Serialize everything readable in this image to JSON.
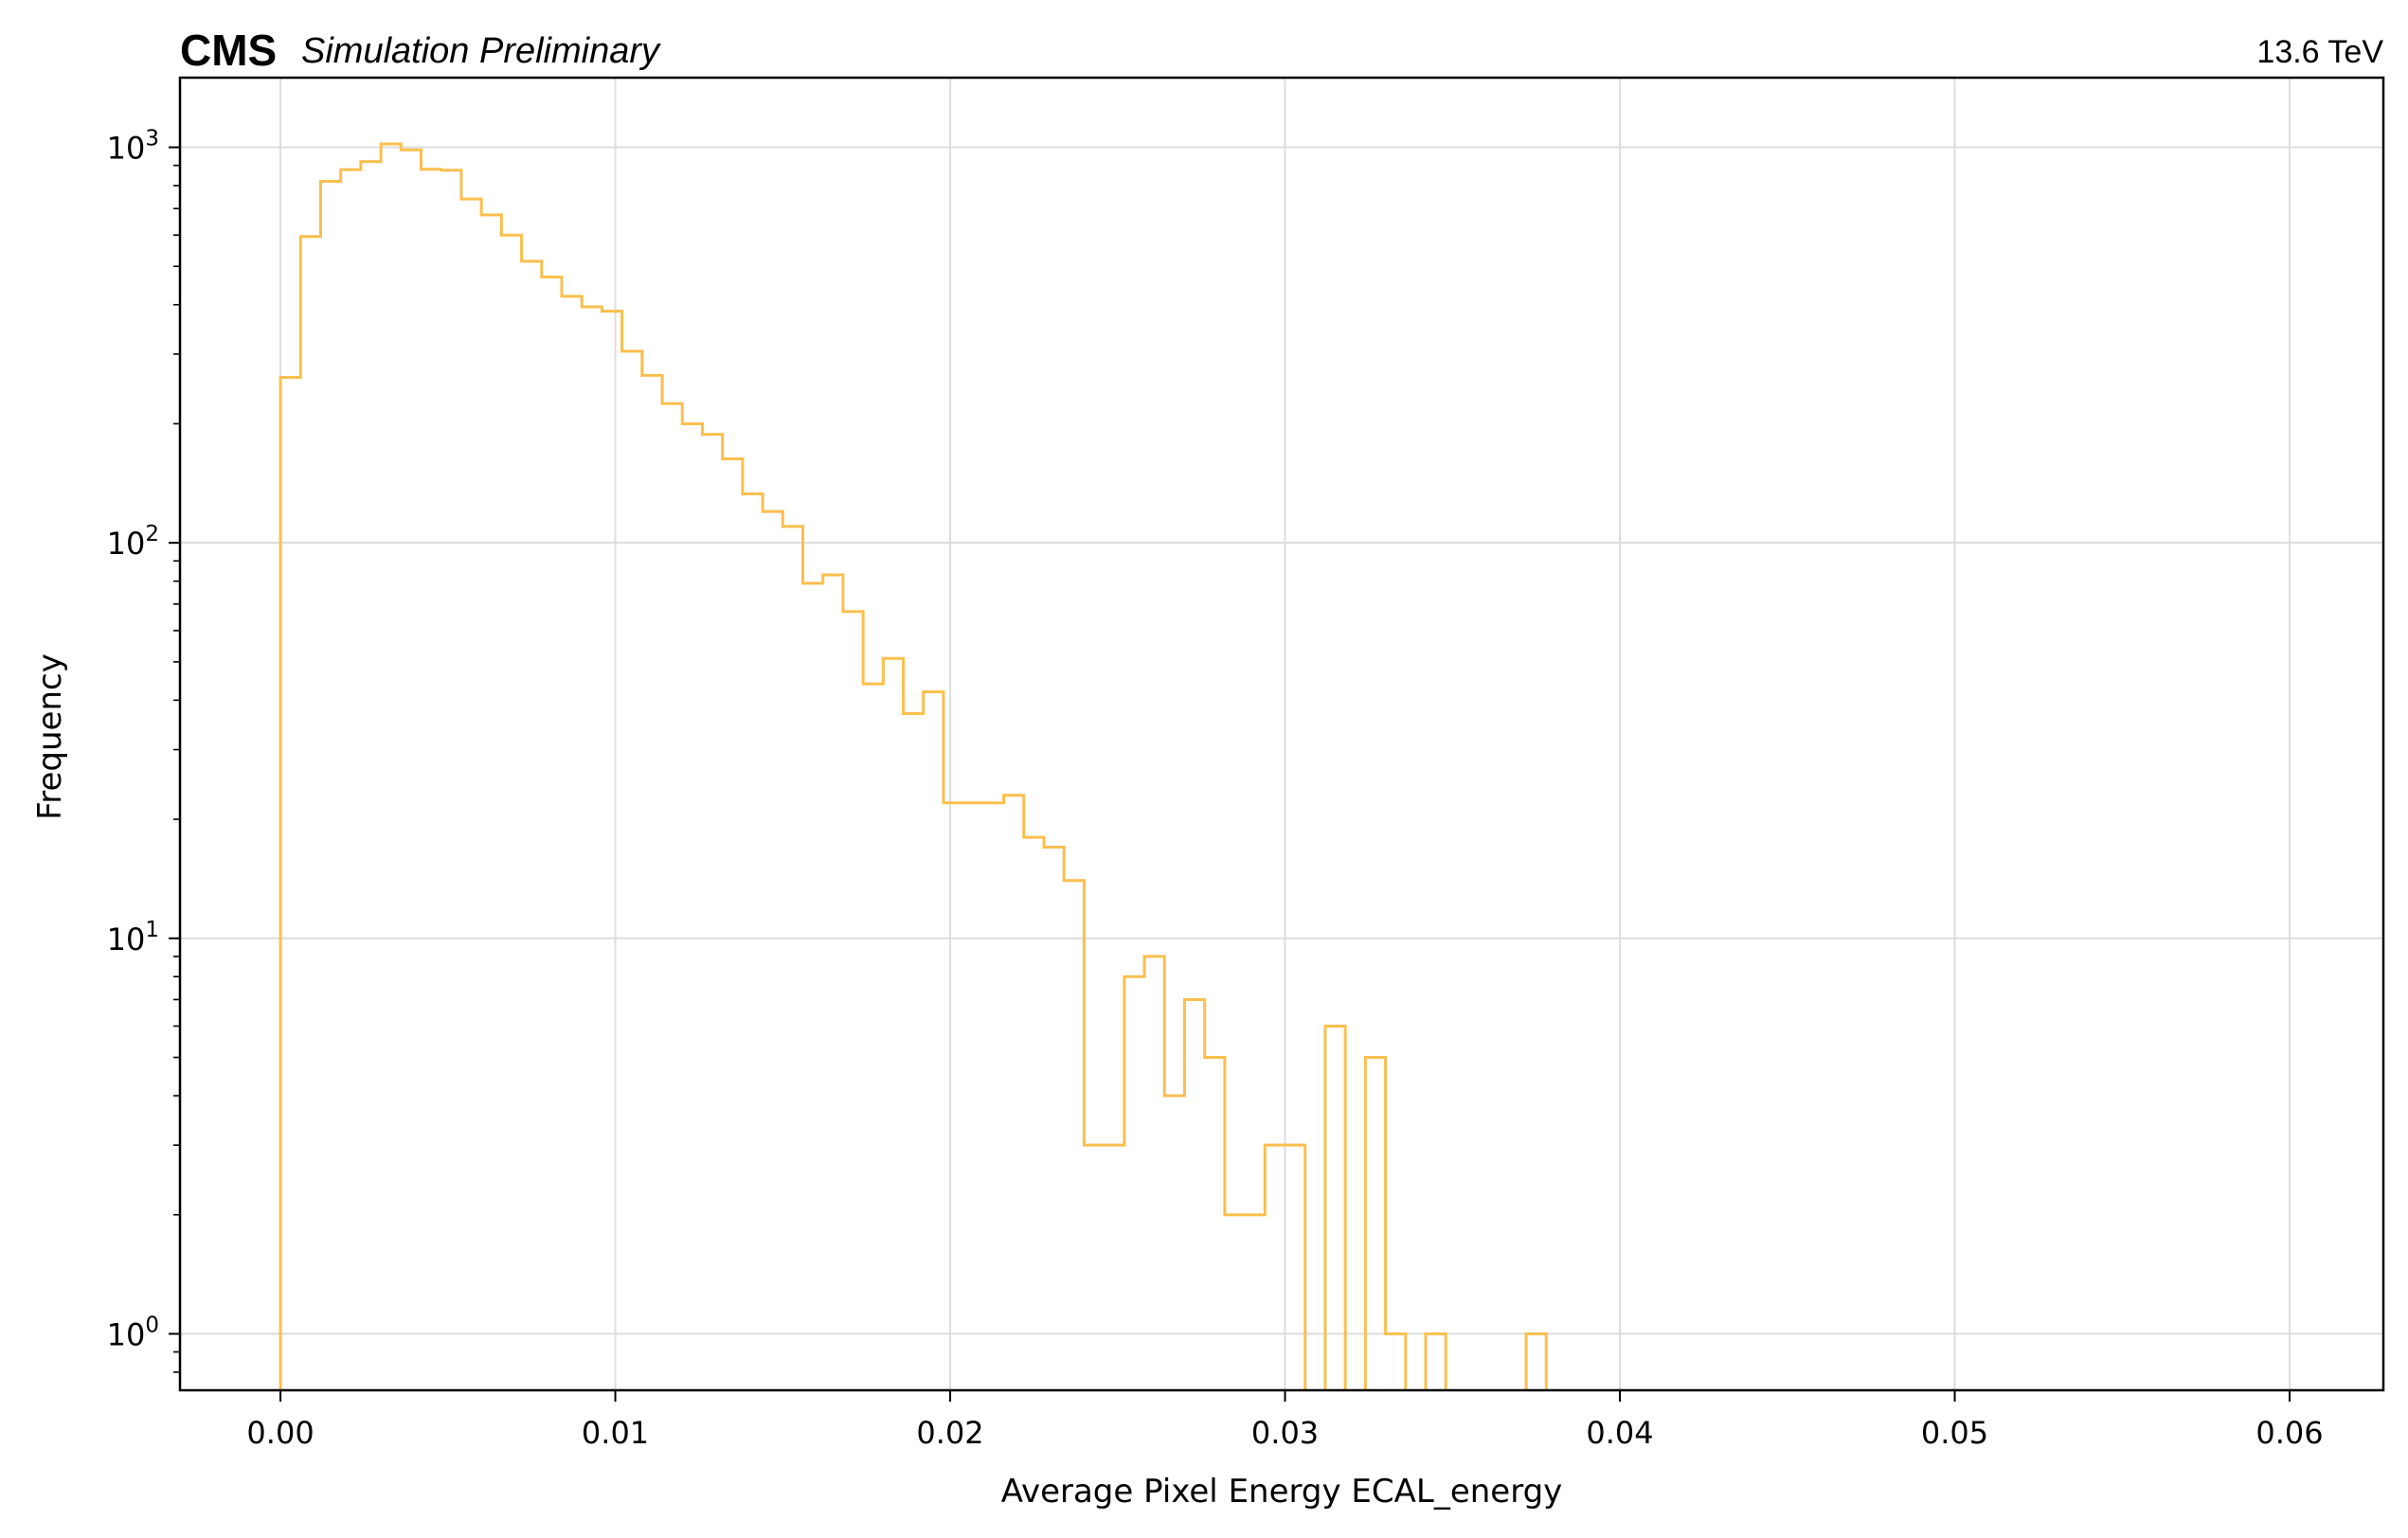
{
  "header": {
    "experiment": "CMS",
    "status": "Simulation Preliminary",
    "energy": "13.6 TeV"
  },
  "chart_data": {
    "type": "histogram",
    "histtype": "step",
    "color": "#FBBF4D",
    "xlabel": "Average Pixel Energy ECAL_energy",
    "ylabel": "Frequency",
    "xlim": [
      -0.003,
      0.0628
    ],
    "ylim": [
      0.72,
      1500
    ],
    "yscale": "log",
    "grid": true,
    "xticks": [
      0.0,
      0.01,
      0.02,
      0.03,
      0.04,
      0.05,
      0.06
    ],
    "xtick_labels": [
      "0.00",
      "0.01",
      "0.02",
      "0.03",
      "0.04",
      "0.05",
      "0.06"
    ],
    "yticks": [
      1,
      10,
      100,
      1000
    ],
    "ytick_labels": [
      {
        "base": "10",
        "exp": "0"
      },
      {
        "base": "10",
        "exp": "1"
      },
      {
        "base": "10",
        "exp": "2"
      },
      {
        "base": "10",
        "exp": "3"
      }
    ],
    "bin_width": 0.0006,
    "bin_start": 0.0,
    "counts": [
      262,
      595,
      820,
      878,
      920,
      1020,
      985,
      880,
      875,
      740,
      675,
      600,
      515,
      470,
      420,
      395,
      385,
      305,
      265,
      225,
      200,
      188,
      163,
      133,
      120,
      110,
      79,
      83,
      67,
      44,
      51,
      37,
      42,
      22,
      22,
      22,
      23,
      18,
      17,
      14,
      3,
      3,
      8,
      9,
      4,
      7,
      5,
      2,
      2,
      3,
      3,
      0,
      6,
      0,
      5,
      1,
      0,
      1,
      0,
      0,
      0,
      0,
      1
    ]
  }
}
